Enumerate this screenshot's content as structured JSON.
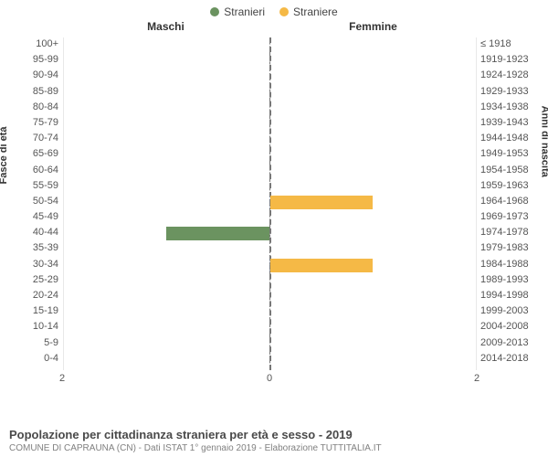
{
  "legend": [
    {
      "label": "Stranieri",
      "color": "#6b9360"
    },
    {
      "label": "Straniere",
      "color": "#f5b946"
    }
  ],
  "columns": {
    "left": "Maschi",
    "right": "Femmine"
  },
  "axis_labels": {
    "left": "Fasce di età",
    "right": "Anni di nascita"
  },
  "chart": {
    "type": "population-pyramid",
    "max_value": 2,
    "x_ticks": {
      "left": [
        2,
        0
      ],
      "right": [
        0,
        2
      ]
    },
    "background_color": "#ffffff",
    "grid_color": "#e8e8e8",
    "center_line": {
      "style": "dashed",
      "color": "#777777"
    },
    "bar_colors": {
      "male": "#6b9360",
      "female": "#f5b946"
    },
    "rows": [
      {
        "age": "100+",
        "birth": "≤ 1918",
        "male": 0,
        "female": 0
      },
      {
        "age": "95-99",
        "birth": "1919-1923",
        "male": 0,
        "female": 0
      },
      {
        "age": "90-94",
        "birth": "1924-1928",
        "male": 0,
        "female": 0
      },
      {
        "age": "85-89",
        "birth": "1929-1933",
        "male": 0,
        "female": 0
      },
      {
        "age": "80-84",
        "birth": "1934-1938",
        "male": 0,
        "female": 0
      },
      {
        "age": "75-79",
        "birth": "1939-1943",
        "male": 0,
        "female": 0
      },
      {
        "age": "70-74",
        "birth": "1944-1948",
        "male": 0,
        "female": 0
      },
      {
        "age": "65-69",
        "birth": "1949-1953",
        "male": 0,
        "female": 0
      },
      {
        "age": "60-64",
        "birth": "1954-1958",
        "male": 0,
        "female": 0
      },
      {
        "age": "55-59",
        "birth": "1959-1963",
        "male": 0,
        "female": 0
      },
      {
        "age": "50-54",
        "birth": "1964-1968",
        "male": 0,
        "female": 1
      },
      {
        "age": "45-49",
        "birth": "1969-1973",
        "male": 0,
        "female": 0
      },
      {
        "age": "40-44",
        "birth": "1974-1978",
        "male": 1,
        "female": 0
      },
      {
        "age": "35-39",
        "birth": "1979-1983",
        "male": 0,
        "female": 0
      },
      {
        "age": "30-34",
        "birth": "1984-1988",
        "male": 0,
        "female": 1
      },
      {
        "age": "25-29",
        "birth": "1989-1993",
        "male": 0,
        "female": 0
      },
      {
        "age": "20-24",
        "birth": "1994-1998",
        "male": 0,
        "female": 0
      },
      {
        "age": "15-19",
        "birth": "1999-2003",
        "male": 0,
        "female": 0
      },
      {
        "age": "10-14",
        "birth": "2004-2008",
        "male": 0,
        "female": 0
      },
      {
        "age": "5-9",
        "birth": "2009-2013",
        "male": 0,
        "female": 0
      },
      {
        "age": "0-4",
        "birth": "2014-2018",
        "male": 0,
        "female": 0
      }
    ]
  },
  "footer": {
    "title": "Popolazione per cittadinanza straniera per età e sesso - 2019",
    "subtitle": "COMUNE DI CAPRAUNA (CN) - Dati ISTAT 1° gennaio 2019 - Elaborazione TUTTITALIA.IT"
  }
}
